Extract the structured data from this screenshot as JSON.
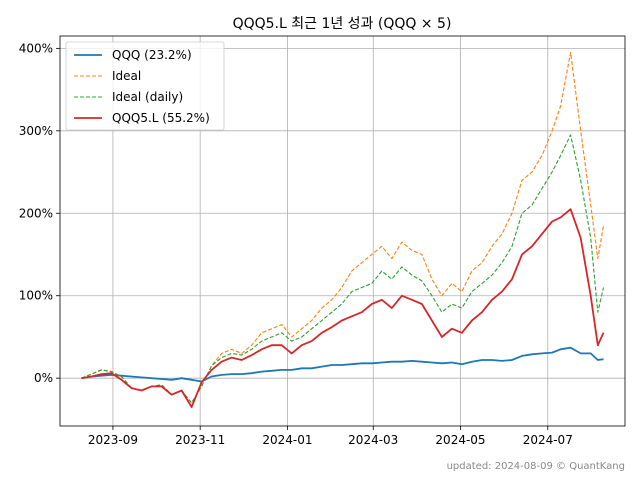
{
  "chart_data": {
    "type": "line",
    "title": "QQQ5.L 최근 1년 성과 (QQQ × 5)",
    "footer": "updated: 2024-08-09 © QuantKang",
    "xlabel": "",
    "ylabel": "",
    "x_ticks": [
      "2023-09",
      "2023-11",
      "2024-01",
      "2024-03",
      "2024-05",
      "2024-07"
    ],
    "y_ticks": [
      "0%",
      "100%",
      "200%",
      "300%",
      "400%"
    ],
    "ylim": [
      -58,
      415
    ],
    "grid": true,
    "legend_position": "top-left",
    "x": [
      "2023-08-10",
      "2023-08-17",
      "2023-08-24",
      "2023-08-31",
      "2023-09-07",
      "2023-09-14",
      "2023-09-21",
      "2023-09-28",
      "2023-10-05",
      "2023-10-12",
      "2023-10-19",
      "2023-10-26",
      "2023-11-02",
      "2023-11-09",
      "2023-11-16",
      "2023-11-23",
      "2023-11-30",
      "2023-12-07",
      "2023-12-14",
      "2023-12-21",
      "2023-12-28",
      "2024-01-04",
      "2024-01-11",
      "2024-01-18",
      "2024-01-25",
      "2024-02-01",
      "2024-02-08",
      "2024-02-15",
      "2024-02-22",
      "2024-02-29",
      "2024-03-07",
      "2024-03-14",
      "2024-03-21",
      "2024-03-28",
      "2024-04-04",
      "2024-04-11",
      "2024-04-18",
      "2024-04-25",
      "2024-05-02",
      "2024-05-09",
      "2024-05-16",
      "2024-05-23",
      "2024-05-30",
      "2024-06-06",
      "2024-06-13",
      "2024-06-20",
      "2024-06-27",
      "2024-07-04",
      "2024-07-10",
      "2024-07-17",
      "2024-07-24",
      "2024-07-31",
      "2024-08-05",
      "2024-08-09"
    ],
    "series": [
      {
        "name": "QQQ (23.2%)",
        "color": "#1f77b4",
        "style": "solid",
        "values": [
          0,
          2,
          3,
          4,
          3,
          2,
          1,
          0,
          -1,
          -2,
          0,
          -2,
          -4,
          2,
          4,
          5,
          5,
          6,
          8,
          9,
          10,
          10,
          12,
          12,
          14,
          16,
          16,
          17,
          18,
          18,
          19,
          20,
          20,
          21,
          20,
          19,
          18,
          19,
          17,
          20,
          22,
          22,
          21,
          22,
          27,
          29,
          30,
          31,
          35,
          37,
          30,
          30,
          22,
          23
        ]
      },
      {
        "name": "Ideal",
        "color": "#ff7f0e",
        "style": "dashed",
        "values": [
          0,
          5,
          10,
          8,
          2,
          -12,
          -15,
          -10,
          -8,
          -20,
          -15,
          -30,
          -10,
          15,
          30,
          35,
          30,
          40,
          55,
          60,
          65,
          50,
          60,
          70,
          85,
          95,
          110,
          130,
          140,
          150,
          160,
          145,
          165,
          155,
          150,
          120,
          100,
          115,
          105,
          130,
          140,
          160,
          175,
          200,
          240,
          250,
          270,
          300,
          330,
          395,
          300,
          210,
          145,
          185
        ]
      },
      {
        "name": "Ideal (daily)",
        "color": "#2ca02c",
        "style": "dashed",
        "values": [
          0,
          5,
          10,
          8,
          2,
          -12,
          -15,
          -10,
          -8,
          -20,
          -15,
          -30,
          -10,
          15,
          25,
          30,
          28,
          35,
          45,
          50,
          55,
          45,
          50,
          60,
          70,
          80,
          90,
          105,
          110,
          115,
          130,
          120,
          135,
          125,
          118,
          100,
          80,
          90,
          85,
          105,
          115,
          125,
          140,
          160,
          200,
          210,
          230,
          250,
          270,
          295,
          240,
          170,
          80,
          110
        ]
      },
      {
        "name": "QQQ5.L (55.2%)",
        "color": "#d62728",
        "style": "solid",
        "values": [
          0,
          2,
          5,
          6,
          -2,
          -12,
          -15,
          -10,
          -10,
          -20,
          -15,
          -35,
          -5,
          10,
          20,
          25,
          22,
          28,
          35,
          40,
          40,
          30,
          40,
          45,
          55,
          62,
          70,
          75,
          80,
          90,
          95,
          85,
          100,
          95,
          90,
          70,
          50,
          60,
          55,
          70,
          80,
          95,
          105,
          120,
          150,
          160,
          175,
          190,
          195,
          205,
          170,
          100,
          40,
          55
        ]
      }
    ]
  }
}
